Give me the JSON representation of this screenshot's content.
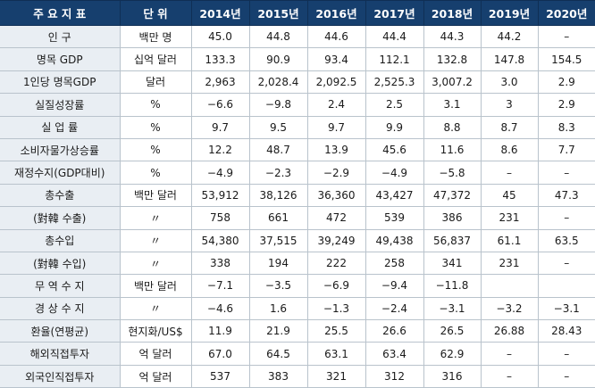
{
  "header": {
    "indicator": "주 요 지 표",
    "unit": "단 위",
    "years": [
      "2014년",
      "2015년",
      "2016년",
      "2017년",
      "2018년",
      "2019년",
      "2020년"
    ]
  },
  "rows": [
    {
      "label": "인          구",
      "unit": "백만 명",
      "values": [
        "45.0",
        "44.8",
        "44.6",
        "44.4",
        "44.3",
        "44.2",
        "–"
      ]
    },
    {
      "label": "명목 GDP",
      "unit": "십억 달러",
      "values": [
        "133.3",
        "90.9",
        "93.4",
        "112.1",
        "132.8",
        "147.8",
        "154.5"
      ]
    },
    {
      "label": "1인당 명목GDP",
      "unit": "달러",
      "values": [
        "2,963",
        "2,028.4",
        "2,092.5",
        "2,525.3",
        "3,007.2",
        "3.0",
        "2.9"
      ]
    },
    {
      "label": "실질성장률",
      "unit": "%",
      "values": [
        "−6.6",
        "−9.8",
        "2.4",
        "2.5",
        "3.1",
        "3",
        "2.9"
      ]
    },
    {
      "label": "실 업 률",
      "unit": "%",
      "values": [
        "9.7",
        "9.5",
        "9.7",
        "9.9",
        "8.8",
        "8.7",
        "8.3"
      ]
    },
    {
      "label": "소비자물가상승률",
      "unit": "%",
      "values": [
        "12.2",
        "48.7",
        "13.9",
        "45.6",
        "11.6",
        "8.6",
        "7.7"
      ]
    },
    {
      "label": "재정수지(GDP대비)",
      "unit": "%",
      "values": [
        "−4.9",
        "−2.3",
        "−2.9",
        "−4.9",
        "−5.8",
        "–",
        "–"
      ]
    },
    {
      "label": "총수출",
      "unit": "백만 달러",
      "values": [
        "53,912",
        "38,126",
        "36,360",
        "43,427",
        "47,372",
        "45",
        "47.3"
      ]
    },
    {
      "label": "(對韓 수출)",
      "unit": "〃",
      "values": [
        "758",
        "661",
        "472",
        "539",
        "386",
        "231",
        "–"
      ]
    },
    {
      "label": "총수입",
      "unit": "〃",
      "values": [
        "54,380",
        "37,515",
        "39,249",
        "49,438",
        "56,837",
        "61.1",
        "63.5"
      ]
    },
    {
      "label": "(對韓 수입)",
      "unit": "〃",
      "values": [
        "338",
        "194",
        "222",
        "258",
        "341",
        "231",
        "–"
      ]
    },
    {
      "label": "무 역 수 지",
      "unit": "백만 달러",
      "values": [
        "−7.1",
        "−3.5",
        "−6.9",
        "−9.4",
        "−11.8",
        "",
        ""
      ]
    },
    {
      "label": "경 상 수 지",
      "unit": "〃",
      "values": [
        "−4.6",
        "1.6",
        "−1.3",
        "−2.4",
        "−3.1",
        "−3.2",
        "−3.1"
      ]
    },
    {
      "label": "환율(연평균)",
      "unit": "현지화/US$",
      "values": [
        "11.9",
        "21.9",
        "25.5",
        "26.6",
        "26.5",
        "26.88",
        "28.43"
      ]
    },
    {
      "label": "해외직접투자",
      "unit": "억 달러",
      "values": [
        "67.0",
        "64.5",
        "63.1",
        "63.4",
        "62.9",
        "–",
        "–"
      ]
    },
    {
      "label": "외국인직접투자",
      "unit": "억 달러",
      "values": [
        "537",
        "383",
        "321",
        "312",
        "316",
        "–",
        "–"
      ]
    }
  ]
}
